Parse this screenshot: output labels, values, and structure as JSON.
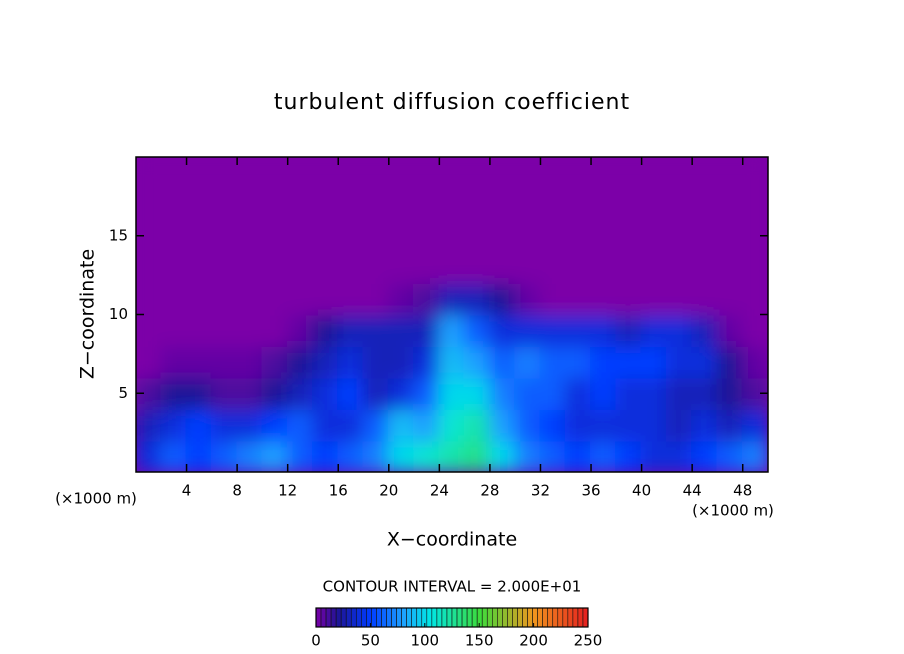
{
  "chart_data": {
    "type": "contour",
    "title": "turbulent diffusion coefficient",
    "x_label": "X−coordinate",
    "y_label": "Z−coordinate",
    "x_unit_label": [
      "(×1000 m)",
      "(×1000 m)"
    ],
    "annotation": "CONTOUR INTERVAL = 2.000E+01",
    "xlim": [
      0,
      50
    ],
    "ylim": [
      0,
      20
    ],
    "xticks": [
      4,
      8,
      12,
      16,
      20,
      24,
      28,
      32,
      36,
      40,
      44,
      48
    ],
    "yticks": [
      5,
      10,
      15
    ],
    "x": [
      1,
      3,
      5,
      7,
      9,
      11,
      13,
      15,
      17,
      19,
      21,
      23,
      25,
      27,
      29,
      31,
      33,
      35,
      37,
      39,
      41,
      43,
      45,
      47,
      49
    ],
    "y": [
      1,
      3,
      5,
      7,
      9,
      11,
      13,
      15,
      17,
      19
    ],
    "z": [
      [
        40,
        60,
        50,
        60,
        70,
        80,
        60,
        50,
        60,
        70,
        100,
        110,
        120,
        130,
        100,
        70,
        60,
        50,
        60,
        50,
        40,
        40,
        50,
        60,
        70
      ],
      [
        30,
        40,
        50,
        40,
        40,
        50,
        60,
        40,
        40,
        60,
        90,
        80,
        110,
        120,
        80,
        60,
        50,
        40,
        40,
        40,
        40,
        30,
        40,
        30,
        40
      ],
      [
        10,
        20,
        20,
        10,
        10,
        20,
        30,
        40,
        50,
        30,
        40,
        60,
        100,
        100,
        70,
        60,
        60,
        40,
        50,
        40,
        40,
        30,
        30,
        20,
        10
      ],
      [
        0,
        5,
        5,
        5,
        5,
        10,
        20,
        30,
        40,
        30,
        30,
        40,
        90,
        80,
        60,
        70,
        60,
        60,
        50,
        50,
        50,
        40,
        40,
        20,
        5
      ],
      [
        0,
        0,
        0,
        0,
        0,
        0,
        5,
        20,
        30,
        30,
        30,
        30,
        80,
        60,
        40,
        40,
        40,
        40,
        40,
        30,
        40,
        40,
        30,
        5,
        0
      ],
      [
        0,
        0,
        0,
        0,
        0,
        0,
        0,
        0,
        0,
        0,
        5,
        10,
        30,
        30,
        20,
        5,
        0,
        0,
        0,
        0,
        0,
        0,
        0,
        0,
        0
      ],
      [
        0,
        0,
        0,
        0,
        0,
        0,
        0,
        0,
        0,
        0,
        0,
        0,
        0,
        0,
        0,
        0,
        0,
        0,
        0,
        0,
        0,
        0,
        0,
        0,
        0
      ],
      [
        0,
        0,
        0,
        0,
        0,
        0,
        0,
        0,
        0,
        0,
        0,
        0,
        0,
        0,
        0,
        0,
        0,
        0,
        0,
        0,
        0,
        0,
        0,
        0,
        0
      ],
      [
        0,
        0,
        0,
        0,
        0,
        0,
        0,
        0,
        0,
        0,
        0,
        0,
        0,
        0,
        0,
        0,
        0,
        0,
        0,
        0,
        0,
        0,
        0,
        0,
        0
      ],
      [
        0,
        0,
        0,
        0,
        0,
        0,
        0,
        0,
        0,
        0,
        0,
        0,
        0,
        0,
        0,
        0,
        0,
        0,
        0,
        0,
        0,
        0,
        0,
        0,
        0
      ]
    ],
    "colorbar": {
      "lim": [
        0,
        250
      ],
      "ticks": [
        0,
        50,
        100,
        150,
        200,
        250
      ]
    }
  }
}
